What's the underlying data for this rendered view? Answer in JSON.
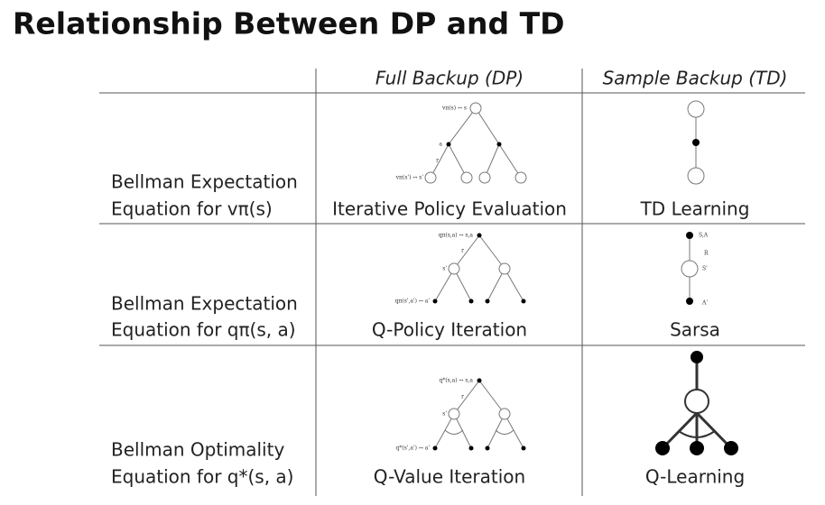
{
  "title": "Relationship Between DP and TD",
  "table": {
    "headers": [
      "Full Backup (DP)",
      "Sample Backup (TD)"
    ],
    "rows": [
      {
        "label": [
          "Bellman Expectation",
          "Equation for vπ(s)"
        ],
        "dp": {
          "caption": "Iterative Policy Evaluation",
          "labels": [
            "vπ(s) ↔ s",
            "a",
            "r",
            "vπ(s') ↔ s'"
          ]
        },
        "td": {
          "caption": "TD Learning"
        }
      },
      {
        "label": [
          "Bellman Expectation",
          "Equation for qπ(s, a)"
        ],
        "dp": {
          "caption": "Q-Policy Iteration",
          "labels": [
            "qπ(s,a) ↔ s,a",
            "r",
            "s'",
            "qπ(s',a') ↔ a'"
          ]
        },
        "td": {
          "caption": "Sarsa",
          "labels": [
            "S,A",
            "R",
            "S'",
            "A'"
          ]
        }
      },
      {
        "label": [
          "Bellman Optimality",
          "Equation for q*(s, a)"
        ],
        "dp": {
          "caption": "Q-Value Iteration",
          "labels": [
            "q*(s,a) ↔ s,a",
            "r",
            "s'",
            "q*(s',a') ↔ a'"
          ]
        },
        "td": {
          "caption": "Q-Learning"
        }
      }
    ]
  }
}
